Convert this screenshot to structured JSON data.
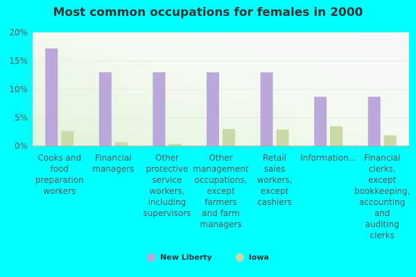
{
  "chart_data": {
    "type": "bar",
    "title": "Most common occupations for females in 2000",
    "xlabel": "",
    "ylabel": "",
    "ylim": [
      0,
      20
    ],
    "yticks": [
      0,
      5,
      10,
      15,
      20
    ],
    "ytick_labels": [
      "0%",
      "5%",
      "10%",
      "15%",
      "20%"
    ],
    "grid": true,
    "legend_position": "bottom",
    "categories": [
      "Cooks and food preparation workers",
      "Financial managers",
      "Other protective service workers, including supervisors",
      "Other management occupations, except farmers and farm managers",
      "Retail sales workers, except cashiers",
      "Information...",
      "Financial clerks, except bookkeeping, accounting and auditing clerks"
    ],
    "category_label_lines": [
      [
        "Cooks and",
        "food",
        "preparation",
        "workers"
      ],
      [
        "Financial",
        "managers"
      ],
      [
        "Other",
        "protective",
        "service",
        "workers,",
        "including",
        "supervisors"
      ],
      [
        "Other",
        "management",
        "occupations,",
        "except",
        "farmers",
        "and farm",
        "managers"
      ],
      [
        "Retail",
        "sales",
        "workers,",
        "except",
        "cashiers"
      ],
      [
        "Information..."
      ],
      [
        "Financial",
        "clerks,",
        "except",
        "bookkeeping,",
        "accounting",
        "and",
        "auditing",
        "clerks"
      ]
    ],
    "series": [
      {
        "name": "New Liberty",
        "color": "#BBA8DA",
        "values": [
          17.2,
          13.0,
          13.0,
          13.0,
          13.0,
          8.7,
          8.7
        ]
      },
      {
        "name": "Iowa",
        "color": "#C9D9A8",
        "values": [
          2.6,
          0.7,
          0.4,
          3.0,
          2.9,
          3.5,
          1.9
        ]
      }
    ]
  }
}
